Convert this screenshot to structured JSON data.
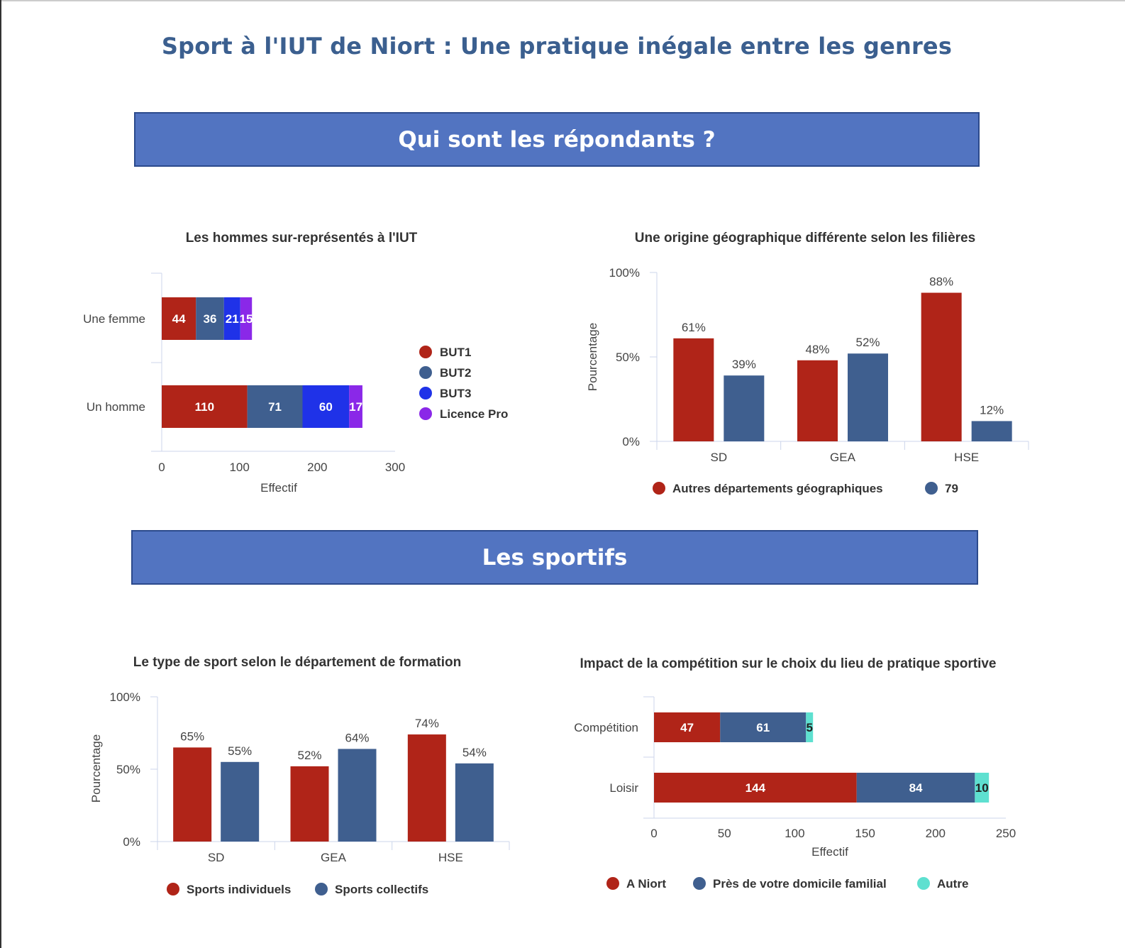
{
  "page": {
    "title": "Sport à l'IUT de Niort : Une pratique inégale entre les genres",
    "section1": "Qui sont les répondants ?",
    "section2": "Les sportifs"
  },
  "colors": {
    "red": "#b02418",
    "blue": "#3f5f8f",
    "bright_blue": "#1f32e8",
    "purple": "#8a28e8",
    "cyan": "#5ee0d0",
    "banner": "#5274c1",
    "title": "#3b5f8f"
  },
  "chart_data": [
    {
      "id": "gender",
      "type": "bar",
      "orientation": "horizontal",
      "stacked": true,
      "title": "Les hommes sur-représentés à l'IUT",
      "xlabel": "Effectif",
      "ylabel": "",
      "categories": [
        "Une femme",
        "Un homme"
      ],
      "series": [
        {
          "name": "BUT1",
          "values": [
            44,
            110
          ]
        },
        {
          "name": "BUT2",
          "values": [
            36,
            71
          ]
        },
        {
          "name": "BUT3",
          "values": [
            21,
            60
          ]
        },
        {
          "name": "Licence Pro",
          "values": [
            15,
            17
          ]
        }
      ],
      "xlim": [
        0,
        300
      ],
      "xticks": [
        "0",
        "100",
        "200",
        "300"
      ],
      "legend": "right"
    },
    {
      "id": "origin",
      "type": "bar",
      "orientation": "vertical",
      "stacked": false,
      "title": "Une origine géographique différente selon les filières",
      "xlabel": "",
      "ylabel": "Pourcentage",
      "categories": [
        "SD",
        "GEA",
        "HSE"
      ],
      "series": [
        {
          "name": "Autres départements géographiques",
          "values": [
            61,
            48,
            88
          ]
        },
        {
          "name": "79",
          "values": [
            39,
            52,
            12
          ]
        }
      ],
      "ylim": [
        0,
        100
      ],
      "yticks": [
        "0%",
        "50%",
        "100%"
      ],
      "legend": "bottom"
    },
    {
      "id": "sporttype",
      "type": "bar",
      "orientation": "vertical",
      "stacked": false,
      "title": "Le type de sport selon le département de formation",
      "xlabel": "",
      "ylabel": "Pourcentage",
      "categories": [
        "SD",
        "GEA",
        "HSE"
      ],
      "series": [
        {
          "name": "Sports individuels",
          "values": [
            65,
            52,
            74
          ]
        },
        {
          "name": "Sports collectifs",
          "values": [
            55,
            64,
            54
          ]
        }
      ],
      "ylim": [
        0,
        100
      ],
      "yticks": [
        "0%",
        "50%",
        "100%"
      ],
      "legend": "bottom"
    },
    {
      "id": "competition",
      "type": "bar",
      "orientation": "horizontal",
      "stacked": true,
      "title": "Impact de la compétition sur le choix du lieu de pratique sportive",
      "xlabel": "Effectif",
      "ylabel": "",
      "categories": [
        "Compétition",
        "Loisir"
      ],
      "series": [
        {
          "name": "A Niort",
          "values": [
            47,
            144
          ]
        },
        {
          "name": "Près de votre domicile familial",
          "values": [
            61,
            84
          ]
        },
        {
          "name": "Autre",
          "values": [
            5,
            10
          ]
        }
      ],
      "xlim": [
        0,
        250
      ],
      "xticks": [
        "0",
        "50",
        "100",
        "150",
        "200",
        "250"
      ],
      "legend": "bottom"
    }
  ]
}
